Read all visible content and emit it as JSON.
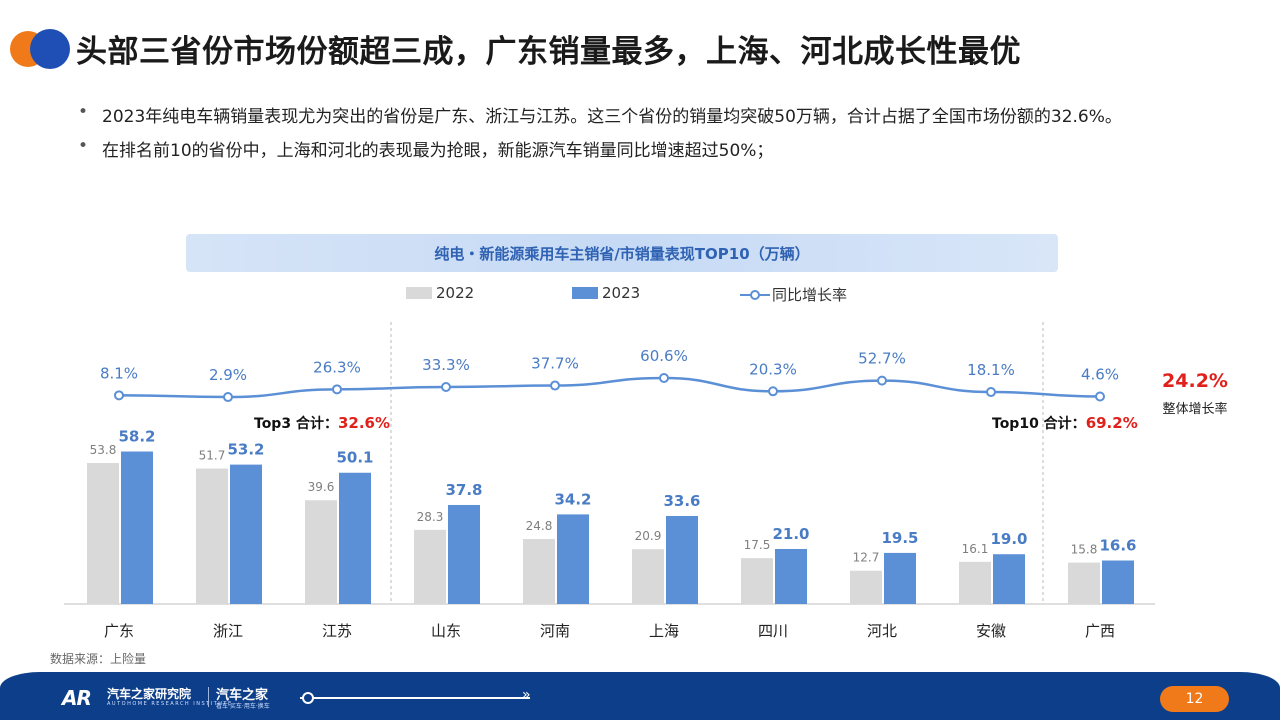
{
  "header": {
    "title": "头部三省份市场份额超三成，广东销量最多，上海、河北成长性最优",
    "accent_colors": [
      "#f07a1a",
      "#1f4fb5"
    ]
  },
  "bullets": [
    "2023年纯电车辆销量表现尤为突出的省份是广东、浙江与江苏。这三个省份的销量均突破50万辆，合计占据了全国市场份额的32.6%。",
    "在排名前10的省份中，上海和河北的表现最为抢眼，新能源汽车销量同比增速超过50%；"
  ],
  "chart_data": {
    "type": "bar",
    "title": "纯电・新能源乘用车主销省/市销量表现TOP10（万辆）",
    "categories": [
      "广东",
      "浙江",
      "江苏",
      "山东",
      "河南",
      "上海",
      "四川",
      "河北",
      "安徽",
      "广西"
    ],
    "series": [
      {
        "name": "2022",
        "type": "bar",
        "color": "#d9d9d9",
        "values": [
          53.8,
          51.7,
          39.6,
          28.3,
          24.8,
          20.9,
          17.5,
          12.7,
          16.1,
          15.8
        ]
      },
      {
        "name": "2023",
        "type": "bar",
        "color": "#5b8fd6",
        "values": [
          58.2,
          53.2,
          50.1,
          37.8,
          34.2,
          33.6,
          21.0,
          19.5,
          19.0,
          16.6
        ]
      },
      {
        "name": "同比增长率",
        "type": "line",
        "color": "#5b8fd6",
        "values": [
          8.1,
          2.9,
          26.3,
          33.3,
          37.7,
          60.6,
          20.3,
          52.7,
          18.1,
          4.6
        ]
      }
    ],
    "ylim": [
      0,
      70
    ],
    "grid": false,
    "legend_position": "top"
  },
  "annotations": {
    "top3_label": "Top3 合计：",
    "top3_value": "32.6%",
    "top10_label": "Top10 合计：",
    "top10_value": "69.2%",
    "overall_growth_value": "24.2%",
    "overall_growth_label": "整体增长率"
  },
  "source": "数据来源：上险量",
  "footer": {
    "brand_name": "汽车之家研究院",
    "brand_sub": "AUTOHOME RESEARCH INSTITUTE",
    "brand2": "汽车之家",
    "brand2_sub": "看车·买车·用车·换车",
    "page_number": "12"
  }
}
